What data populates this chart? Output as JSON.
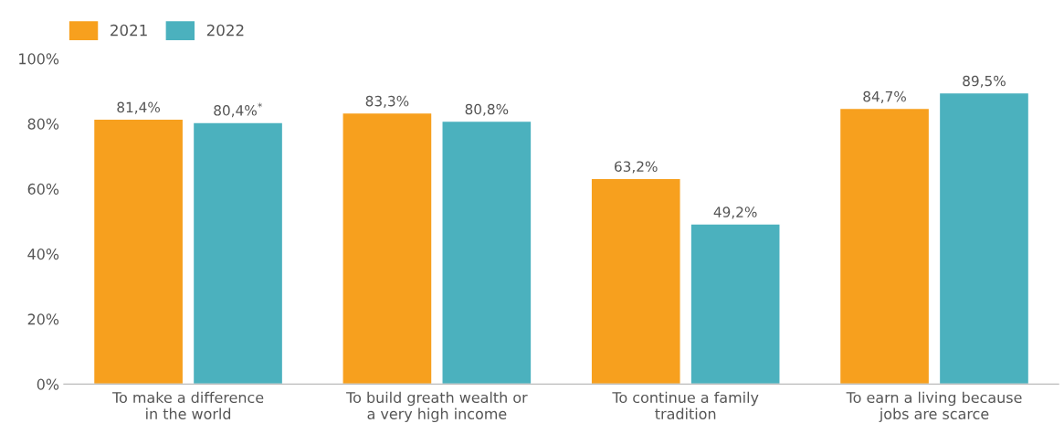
{
  "chart_data": {
    "type": "bar",
    "categories": [
      "To make a difference\nin the world",
      "To build greath wealth or\na very high income",
      "To continue a family\ntradition",
      "To earn a living because\njobs are scarce"
    ],
    "series": [
      {
        "name": "2021",
        "color": "#f7a01e",
        "values": [
          81.4,
          83.3,
          63.2,
          84.7
        ],
        "value_labels": [
          "81,4%",
          "83,3%",
          "63,2%",
          "84,7%"
        ]
      },
      {
        "name": "2022",
        "color": "#4bb1be",
        "values": [
          80.4,
          80.8,
          49.2,
          89.5
        ],
        "value_labels": [
          "80,4%$^{*}$",
          "80,8%",
          "49,2%",
          "89,5%"
        ]
      }
    ],
    "ylim": [
      0,
      100
    ],
    "yticks": [
      {
        "value": 0,
        "label": "0%"
      },
      {
        "value": 20,
        "label": "20%"
      },
      {
        "value": 40,
        "label": "40%"
      },
      {
        "value": 60,
        "label": "60%"
      },
      {
        "value": 80,
        "label": "80%"
      },
      {
        "value": 100,
        "label": "100%"
      }
    ],
    "grid": false,
    "legend": "top left"
  }
}
